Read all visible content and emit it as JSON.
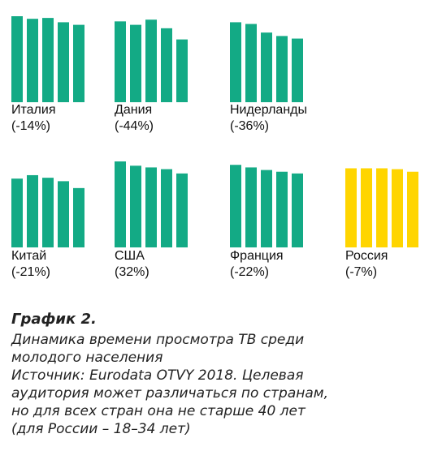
{
  "chart_data": {
    "type": "bar",
    "colors": {
      "default": "#13aa85",
      "highlight": "#ffd500"
    },
    "highlight_group": "Россия",
    "groups": [
      {
        "name": "Италия",
        "change": "(-14%)",
        "values": [
          100,
          97,
          98,
          93,
          90
        ]
      },
      {
        "name": "Дания",
        "change": "(-44%)",
        "values": [
          94,
          90,
          96,
          86,
          73
        ]
      },
      {
        "name": "Нидерланды",
        "change": "(-36%)",
        "values": [
          93,
          91,
          81,
          77,
          74
        ]
      },
      {
        "name": "Китай",
        "change": "(-21%)",
        "values": [
          80,
          84,
          81,
          77,
          69
        ]
      },
      {
        "name": "США",
        "change": "(32%)",
        "values": [
          100,
          95,
          93,
          91,
          86
        ]
      },
      {
        "name": "Франция",
        "change": "(-22%)",
        "values": [
          96,
          93,
          90,
          88,
          86
        ]
      },
      {
        "name": "Россия",
        "change": "(-7%)",
        "values": [
          92,
          92,
          92,
          91,
          88
        ]
      }
    ]
  },
  "caption": {
    "title": "График 2.",
    "lines": [
      "Динамика времени просмотра ТВ среди",
      "молодого населения",
      "Источник: Eurodata OTVY 2018. Целевая",
      "аудитория может различаться по странам,",
      "но для всех стран она не старше 40 лет",
      "(для России – 18–34 лет)"
    ]
  }
}
